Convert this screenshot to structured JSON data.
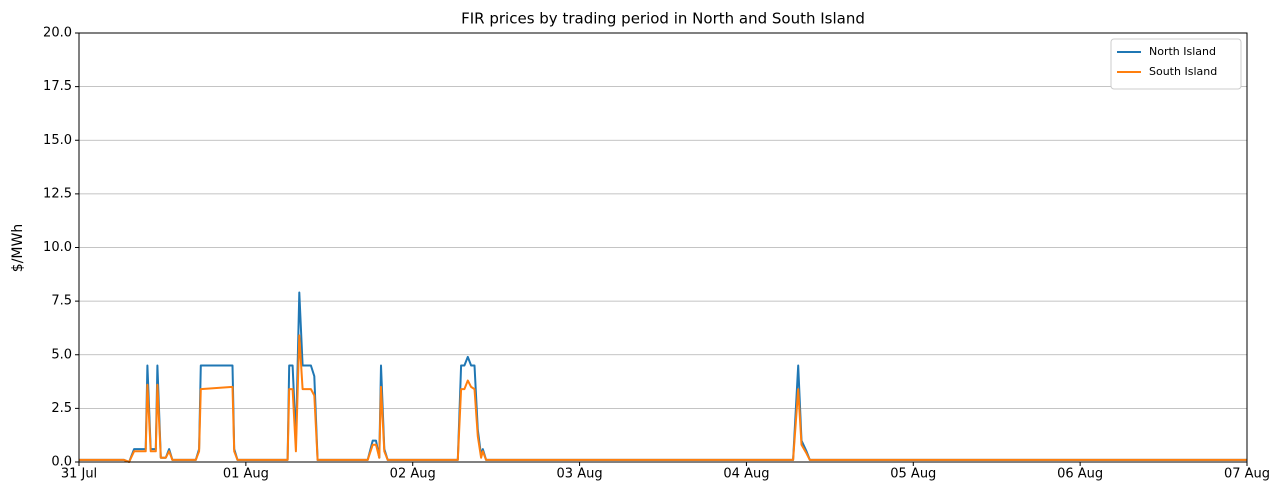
{
  "chart_data": {
    "type": "line",
    "title": "FIR prices by trading period in North and South Island",
    "y_label": "$/MWh",
    "x": [
      0,
      0.27,
      0.3,
      0.33,
      0.4,
      0.41,
      0.43,
      0.46,
      0.47,
      0.49,
      0.52,
      0.54,
      0.56,
      0.7,
      0.72,
      0.73,
      0.92,
      0.93,
      0.95,
      1.25,
      1.26,
      1.28,
      1.3,
      1.32,
      1.34,
      1.39,
      1.41,
      1.43,
      1.73,
      1.76,
      1.78,
      1.8,
      1.81,
      1.83,
      1.85,
      2.27,
      2.29,
      2.31,
      2.33,
      2.35,
      2.37,
      2.39,
      2.41,
      2.42,
      2.44,
      4.28,
      4.31,
      4.33,
      4.36,
      4.38,
      7
    ],
    "series": [
      {
        "name": "North Island",
        "color": "#1f77b4",
        "values": [
          0.1,
          0.1,
          0,
          0.6,
          0.6,
          4.5,
          0.6,
          0.6,
          4.5,
          0.2,
          0.2,
          0.6,
          0.1,
          0.1,
          0.6,
          4.5,
          4.5,
          0.6,
          0.1,
          0.1,
          4.5,
          4.5,
          1.0,
          7.9,
          4.5,
          4.5,
          4.0,
          0.1,
          0.1,
          1.0,
          1.0,
          0.2,
          4.5,
          0.6,
          0.1,
          0.1,
          4.5,
          4.5,
          4.9,
          4.5,
          4.5,
          1.5,
          0.3,
          0.6,
          0.1,
          0.1,
          4.5,
          1.0,
          0.5,
          0.1,
          0.1
        ]
      },
      {
        "name": "South Island",
        "color": "#ff7f0e",
        "values": [
          0.1,
          0.1,
          0,
          0.5,
          0.5,
          3.6,
          0.5,
          0.5,
          3.6,
          0.2,
          0.2,
          0.5,
          0.1,
          0.1,
          0.5,
          3.4,
          3.5,
          0.5,
          0.1,
          0.1,
          3.4,
          3.4,
          0.5,
          5.9,
          3.4,
          3.4,
          3.1,
          0.1,
          0.1,
          0.8,
          0.8,
          0.2,
          3.5,
          0.5,
          0.1,
          0.1,
          3.4,
          3.4,
          3.8,
          3.5,
          3.4,
          1.2,
          0.2,
          0.5,
          0.1,
          0.1,
          3.4,
          0.8,
          0.4,
          0.1,
          0.1
        ]
      }
    ],
    "xlim": [
      0,
      7
    ],
    "xticks": [
      {
        "value": 0,
        "label": "31 Jul"
      },
      {
        "value": 1,
        "label": "01 Aug"
      },
      {
        "value": 2,
        "label": "02 Aug"
      },
      {
        "value": 3,
        "label": "03 Aug"
      },
      {
        "value": 4,
        "label": "04 Aug"
      },
      {
        "value": 5,
        "label": "05 Aug"
      },
      {
        "value": 6,
        "label": "06 Aug"
      },
      {
        "value": 7,
        "label": "07 Aug"
      }
    ],
    "ylim": [
      0,
      20
    ],
    "yticks": [
      {
        "value": 0,
        "label": "0.0"
      },
      2.5,
      {
        "value": 5,
        "label": "5.0"
      },
      7.5,
      {
        "value": 10,
        "label": "10.0"
      },
      12.5,
      {
        "value": 15,
        "label": "15.0"
      },
      17.5,
      {
        "value": 20,
        "label": "20.0"
      }
    ],
    "grid": true,
    "legend": "upper right"
  }
}
